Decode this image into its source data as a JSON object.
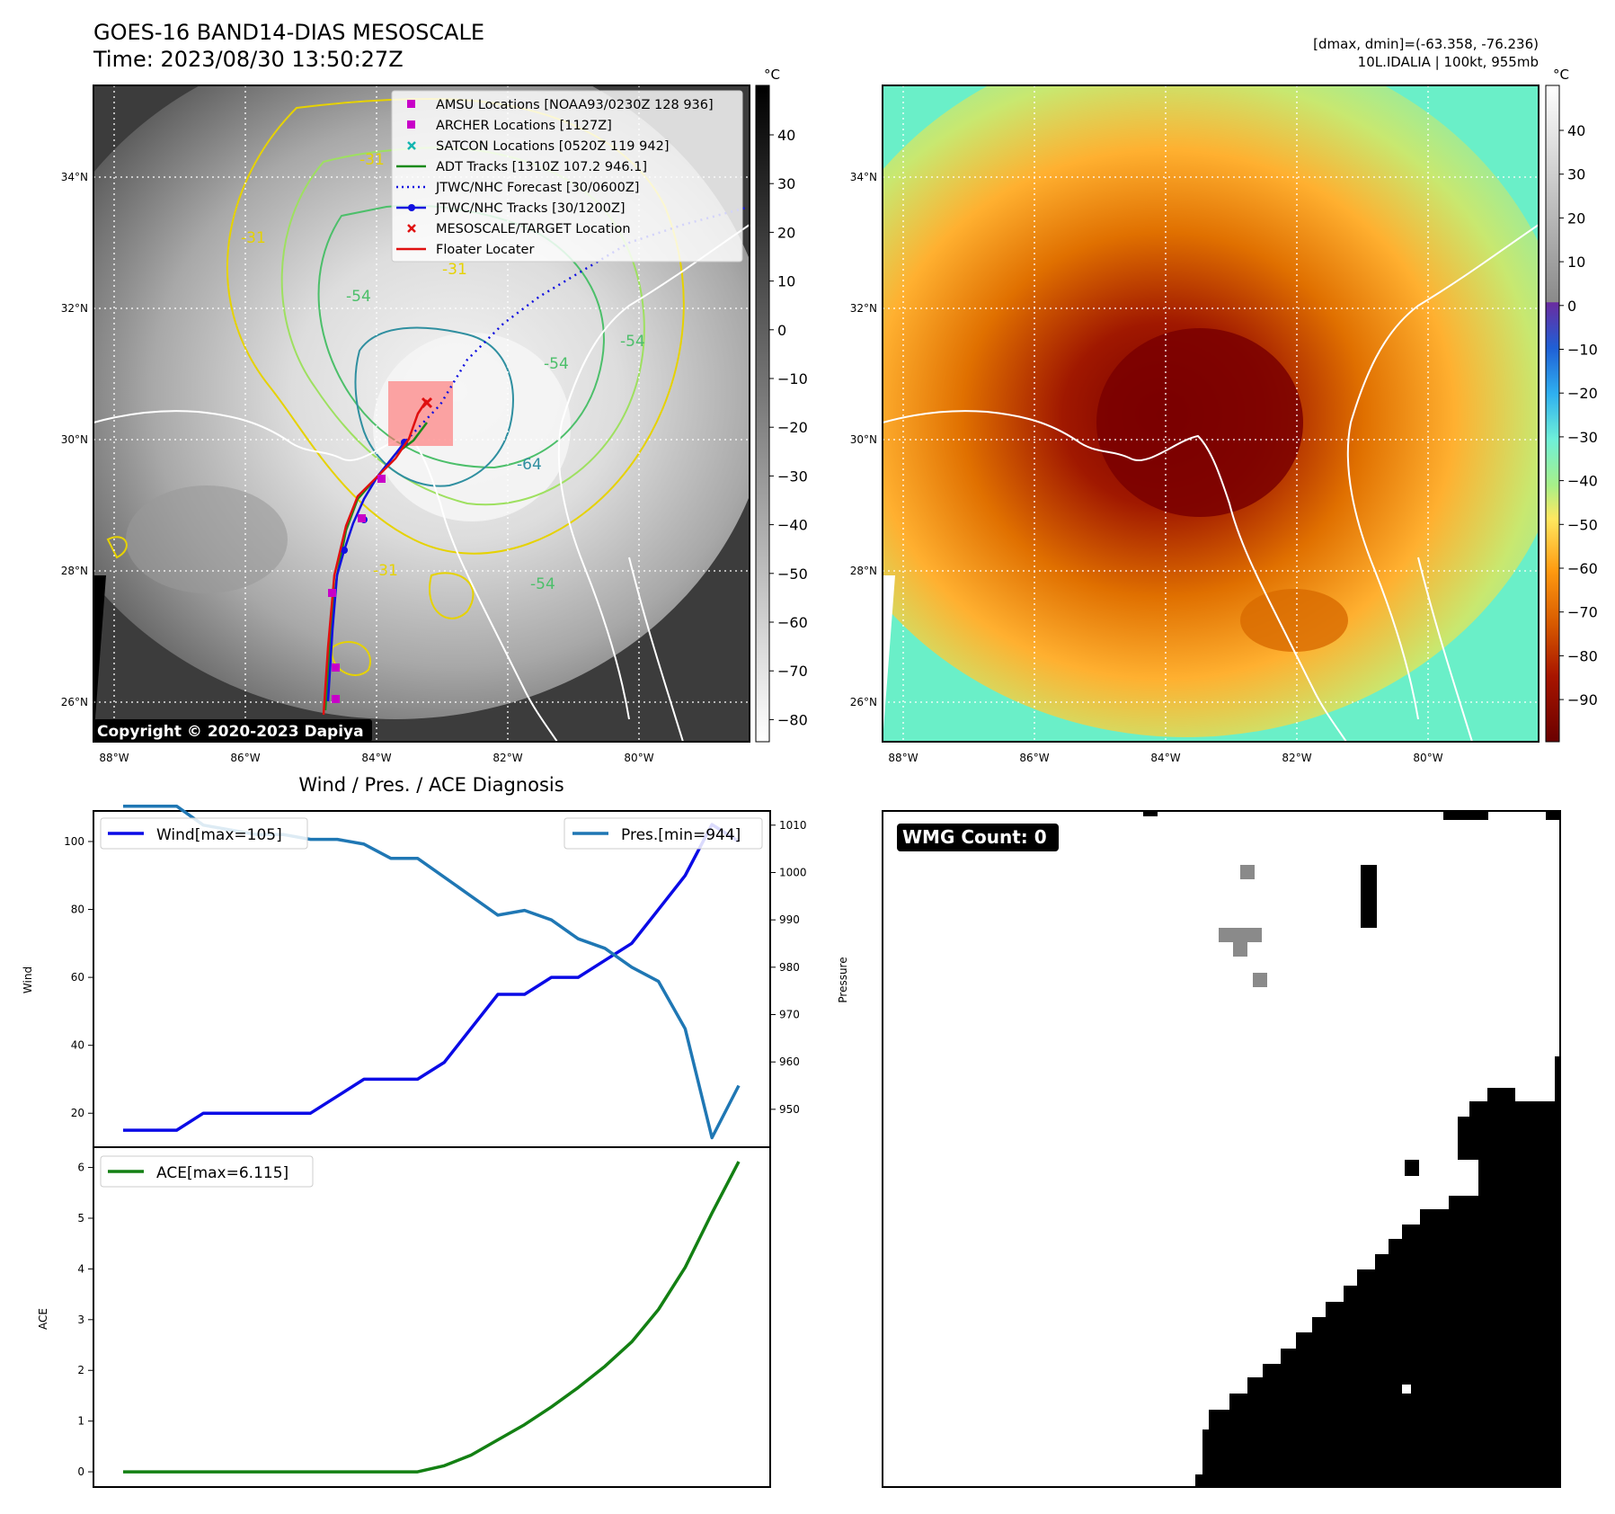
{
  "header": {
    "title_line1": "GOES-16 BAND14-DIAS MESOSCALE",
    "title_line2": "Time: 2023/08/30 13:50:27Z",
    "right_line1": "[dmax, dmin]=(-63.358, -76.236)",
    "right_line2": "10L.IDALIA | 100kt, 955mb"
  },
  "copyright": "Copyright © 2020-2023 Dapiya",
  "maps": {
    "lon_ticks": [
      "88°W",
      "86°W",
      "84°W",
      "82°W",
      "80°W"
    ],
    "lat_ticks": [
      "34°N",
      "32°N",
      "30°N",
      "28°N",
      "26°N"
    ],
    "contour_labels": [
      "-31",
      "-31",
      "-54",
      "-54",
      "-54",
      "-64",
      "-31",
      "-54",
      "-31"
    ],
    "legend": [
      {
        "label": "AMSU Locations [NOAA93/0230Z 128 936]",
        "marker": "square",
        "color": "#c800c8"
      },
      {
        "label": "ARCHER Locations [1127Z]",
        "marker": "square",
        "color": "#c800c8"
      },
      {
        "label": "SATCON Locations [0520Z 119 942]",
        "marker": "x",
        "color": "#12b5b0"
      },
      {
        "label": "ADT Tracks [1310Z 107.2 946.1]",
        "marker": "line",
        "color": "#1a8a1a"
      },
      {
        "label": "JTWC/NHC Forecast [30/0600Z]",
        "marker": "dotted",
        "color": "#1010e0"
      },
      {
        "label": "JTWC/NHC Tracks [30/1200Z]",
        "marker": "line-dot",
        "color": "#1010e0"
      },
      {
        "label": "MESOSCALE/TARGET Location",
        "marker": "x",
        "color": "#e01010"
      },
      {
        "label": "Floater Locater",
        "marker": "line",
        "color": "#e01010"
      }
    ]
  },
  "colorbar_gray": {
    "unit": "°C",
    "ticks": [
      "40",
      "30",
      "20",
      "10",
      "0",
      "−10",
      "−20",
      "−30",
      "−40",
      "−50",
      "−60",
      "−70",
      "−80"
    ]
  },
  "colorbar_color": {
    "unit": "°C",
    "ticks": [
      "40",
      "30",
      "20",
      "10",
      "0",
      "−10",
      "−20",
      "−30",
      "−40",
      "−50",
      "−60",
      "−70",
      "−80",
      "−90"
    ]
  },
  "wmg": {
    "label": "WMG Count: 0"
  },
  "colors": {
    "wind": "#0a0ae6",
    "pressure": "#1f77b4",
    "ace": "#138013",
    "grid": "#ffffff"
  },
  "chart_data": [
    {
      "type": "line",
      "title": "Wind / Pres. / ACE Diagnosis",
      "ylabel": "Wind",
      "ylim": [
        10,
        109
      ],
      "yticks": [
        20,
        40,
        60,
        80,
        100
      ],
      "legend": "top-left",
      "series": [
        {
          "name": "Wind[max=105]",
          "values": [
            15,
            15,
            15,
            20,
            20,
            20,
            20,
            20,
            25,
            30,
            30,
            30,
            35,
            45,
            55,
            55,
            60,
            60,
            65,
            70,
            80,
            90,
            105,
            100
          ]
        }
      ]
    },
    {
      "type": "line",
      "ylabel": "Pressure",
      "ylim": [
        942,
        1013
      ],
      "yticks": [
        950,
        960,
        970,
        980,
        990,
        1000,
        1010
      ],
      "legend": "top-right",
      "series": [
        {
          "name": "Pres.[min=944]",
          "values": [
            1014,
            1014,
            1014,
            1010,
            1009,
            1008,
            1008,
            1007,
            1007,
            1006,
            1003,
            1003,
            999,
            995,
            991,
            992,
            990,
            986,
            984,
            980,
            977,
            967,
            944,
            955
          ]
        }
      ]
    },
    {
      "type": "line",
      "ylabel": "ACE",
      "ylim": [
        -0.3,
        6.4
      ],
      "yticks": [
        0,
        1,
        2,
        3,
        4,
        5,
        6
      ],
      "legend": "top-left",
      "series": [
        {
          "name": "ACE[max=6.115]",
          "values": [
            0,
            0,
            0,
            0,
            0,
            0,
            0,
            0,
            0,
            0,
            0,
            0,
            0.12,
            0.33,
            0.63,
            0.93,
            1.28,
            1.66,
            2.08,
            2.56,
            3.2,
            4.03,
            5.1,
            6.115
          ]
        }
      ]
    }
  ]
}
